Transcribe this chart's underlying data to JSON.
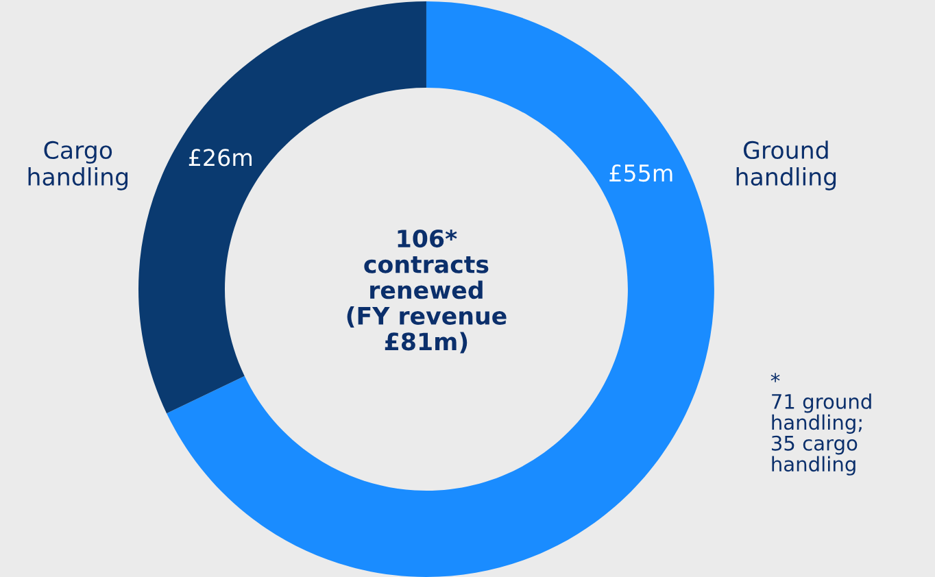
{
  "chart_data": {
    "type": "donut",
    "categories": [
      "Ground handling",
      "Cargo handling"
    ],
    "values": [
      55,
      26
    ],
    "colors": [
      "#1a8cff",
      "#0a3a70"
    ],
    "value_labels": [
      "£55m",
      "£26m"
    ],
    "annotations": [
      "106*\ncontracts\nrenewed\n(FY revenue\n£81m)",
      "*\n71 ground\nhandling;\n35 cargo\nhandling"
    ]
  }
}
